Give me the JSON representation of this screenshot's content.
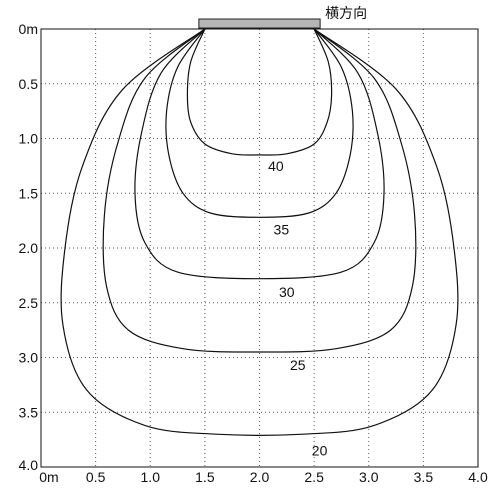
{
  "chart_data": {
    "type": "line",
    "title": "",
    "xlabel": "",
    "ylabel": "",
    "xlim": [
      0,
      4.0
    ],
    "ylim": [
      0,
      4.0
    ],
    "y_inverted": true,
    "grid": true,
    "grid_style": "dotted",
    "x_tick_labels": [
      "0m",
      "0.5",
      "1.0",
      "1.5",
      "2.0",
      "2.5",
      "3.0",
      "3.5",
      "4.0"
    ],
    "y_tick_labels": [
      "0m",
      "0.5",
      "1.0",
      "1.5",
      "2.0",
      "2.5",
      "3.0",
      "3.5",
      "4.0"
    ],
    "source_label": "横方向",
    "source": {
      "x_start": 1.5,
      "x_end": 2.5,
      "color": "#b5b5b5"
    },
    "series": [
      {
        "label": "40",
        "points": [
          [
            1.5,
            0
          ],
          [
            1.37,
            0.3
          ],
          [
            1.34,
            0.6
          ],
          [
            1.37,
            0.85
          ],
          [
            1.5,
            1.05
          ],
          [
            1.75,
            1.14
          ],
          [
            2.0,
            1.15
          ],
          [
            2.25,
            1.14
          ],
          [
            2.5,
            1.05
          ],
          [
            2.62,
            0.85
          ],
          [
            2.66,
            0.6
          ],
          [
            2.63,
            0.3
          ],
          [
            2.5,
            0
          ]
        ]
      },
      {
        "label": "35",
        "points": [
          [
            1.5,
            0
          ],
          [
            1.25,
            0.35
          ],
          [
            1.15,
            0.75
          ],
          [
            1.17,
            1.15
          ],
          [
            1.3,
            1.5
          ],
          [
            1.55,
            1.68
          ],
          [
            2.0,
            1.72
          ],
          [
            2.45,
            1.68
          ],
          [
            2.7,
            1.5
          ],
          [
            2.83,
            1.15
          ],
          [
            2.85,
            0.75
          ],
          [
            2.75,
            0.35
          ],
          [
            2.5,
            0
          ]
        ]
      },
      {
        "label": "30",
        "points": [
          [
            1.5,
            0
          ],
          [
            1.1,
            0.4
          ],
          [
            0.92,
            0.95
          ],
          [
            0.86,
            1.5
          ],
          [
            0.95,
            1.95
          ],
          [
            1.25,
            2.22
          ],
          [
            2.0,
            2.28
          ],
          [
            2.75,
            2.22
          ],
          [
            3.05,
            1.95
          ],
          [
            3.14,
            1.5
          ],
          [
            3.08,
            0.95
          ],
          [
            2.9,
            0.4
          ],
          [
            2.5,
            0
          ]
        ]
      },
      {
        "label": "25",
        "points": [
          [
            1.5,
            0
          ],
          [
            0.95,
            0.45
          ],
          [
            0.7,
            1.05
          ],
          [
            0.58,
            1.7
          ],
          [
            0.6,
            2.35
          ],
          [
            0.8,
            2.75
          ],
          [
            1.3,
            2.92
          ],
          [
            2.0,
            2.95
          ],
          [
            2.7,
            2.92
          ],
          [
            3.2,
            2.75
          ],
          [
            3.4,
            2.35
          ],
          [
            3.42,
            1.7
          ],
          [
            3.3,
            1.05
          ],
          [
            3.05,
            0.45
          ],
          [
            2.5,
            0
          ]
        ]
      },
      {
        "label": "20",
        "points": [
          [
            1.5,
            0
          ],
          [
            0.75,
            0.55
          ],
          [
            0.38,
            1.25
          ],
          [
            0.22,
            2.0
          ],
          [
            0.2,
            2.7
          ],
          [
            0.42,
            3.3
          ],
          [
            0.95,
            3.62
          ],
          [
            1.6,
            3.7
          ],
          [
            2.4,
            3.7
          ],
          [
            3.05,
            3.62
          ],
          [
            3.58,
            3.3
          ],
          [
            3.8,
            2.7
          ],
          [
            3.78,
            2.0
          ],
          [
            3.62,
            1.25
          ],
          [
            3.25,
            0.55
          ],
          [
            2.5,
            0
          ]
        ]
      }
    ],
    "series_label_positions": [
      {
        "label": "40",
        "x": 2.15,
        "y": 1.25
      },
      {
        "label": "35",
        "x": 2.2,
        "y": 1.83
      },
      {
        "label": "30",
        "x": 2.25,
        "y": 2.4
      },
      {
        "label": "25",
        "x": 2.35,
        "y": 3.07
      },
      {
        "label": "20",
        "x": 2.55,
        "y": 3.85
      }
    ]
  }
}
